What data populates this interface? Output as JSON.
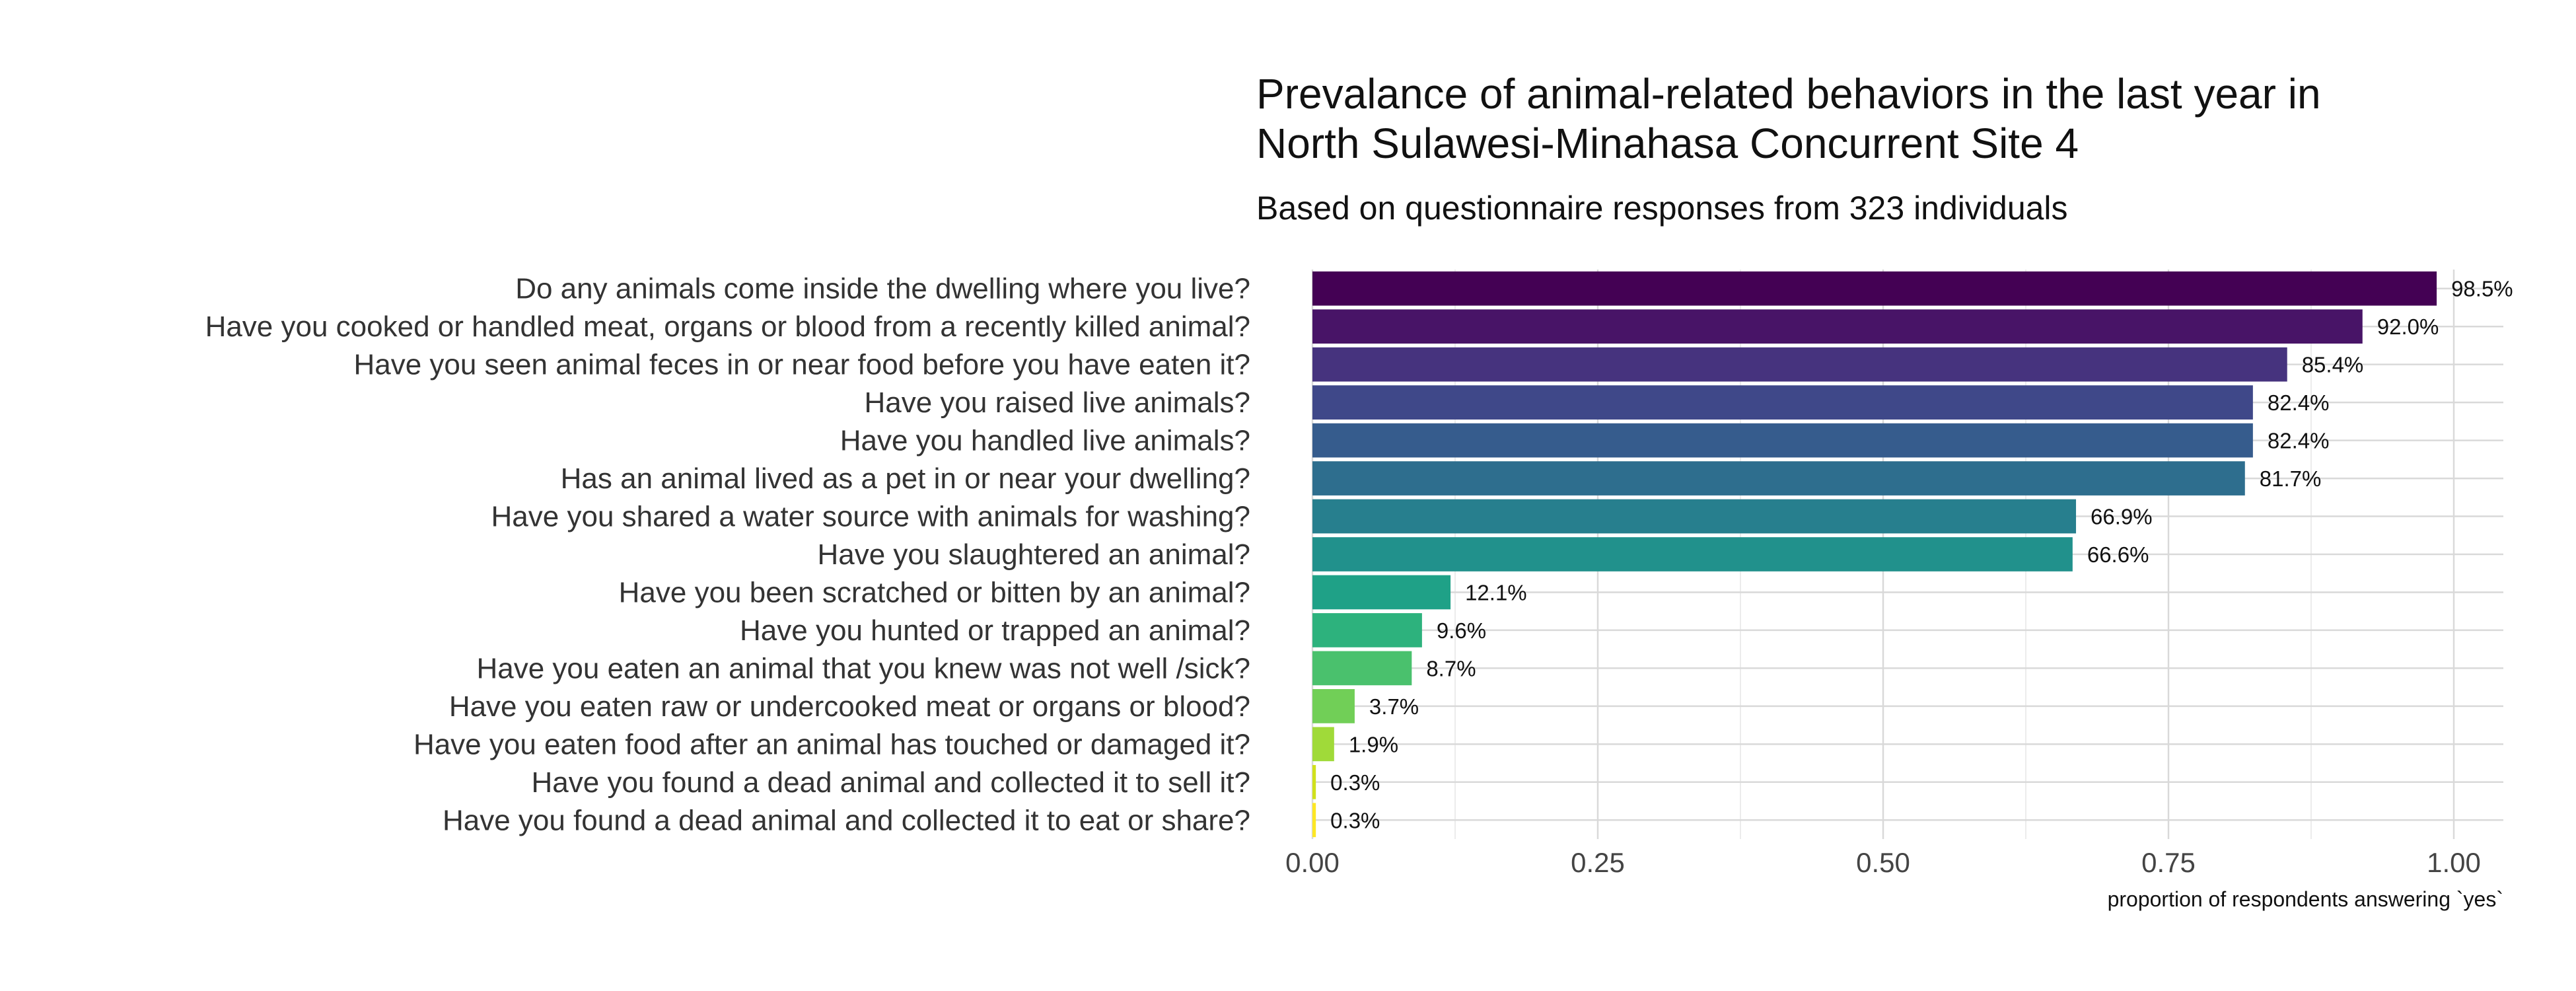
{
  "chart_data": {
    "type": "bar",
    "orientation": "horizontal",
    "title_lines": [
      "Prevalance of animal-related behaviors in the last year in",
      "North Sulawesi-Minahasa Concurrent Site 4"
    ],
    "subtitle": "Based on questionnaire responses from 323 individuals",
    "xlabel": "proportion of respondents answering `yes`",
    "ylabel": "",
    "xlim": [
      0,
      1.05
    ],
    "x_ticks": [
      0,
      0.25,
      0.5,
      0.75,
      1.0
    ],
    "x_tick_labels": [
      "0.00",
      "0.25",
      "0.50",
      "0.75",
      "1.00"
    ],
    "grid": true,
    "legend": "none",
    "categories": [
      "Do any animals come inside the dwelling where you live?",
      "Have you cooked or handled meat, organs or blood from a recently killed animal?",
      "Have you seen animal feces in or near food before you have eaten it?",
      "Have you raised live animals?",
      "Have you handled live animals?",
      "Has an animal lived as a pet in or near your dwelling?",
      "Have you shared a water source with animals for washing?",
      "Have you slaughtered an animal?",
      "Have you been scratched or bitten by an animal?",
      "Have you hunted or trapped an animal?",
      "Have you eaten an animal that you knew was not well /sick?",
      "Have you eaten raw or undercooked meat or organs or blood?",
      "Have you eaten food after an animal has touched or damaged it?",
      "Have you found a dead animal and collected it to sell it?",
      "Have you found a dead animal and collected it to eat or share?"
    ],
    "values": [
      0.985,
      0.92,
      0.854,
      0.824,
      0.824,
      0.817,
      0.669,
      0.666,
      0.121,
      0.096,
      0.087,
      0.037,
      0.019,
      0.003,
      0.003
    ],
    "data_labels": [
      "98.5%",
      "92.0%",
      "85.4%",
      "82.4%",
      "82.4%",
      "81.7%",
      "66.9%",
      "66.6%",
      "12.1%",
      "9.6%",
      "8.7%",
      "3.7%",
      "1.9%",
      "0.3%",
      "0.3%"
    ],
    "colors": [
      "#440154",
      "#481467",
      "#46337e",
      "#3f4889",
      "#365c8d",
      "#2e6e8e",
      "#277f8e",
      "#21918c",
      "#1fa187",
      "#2db27d",
      "#4ac16d",
      "#71cf57",
      "#a0da39",
      "#d0e11c",
      "#fde725"
    ]
  }
}
